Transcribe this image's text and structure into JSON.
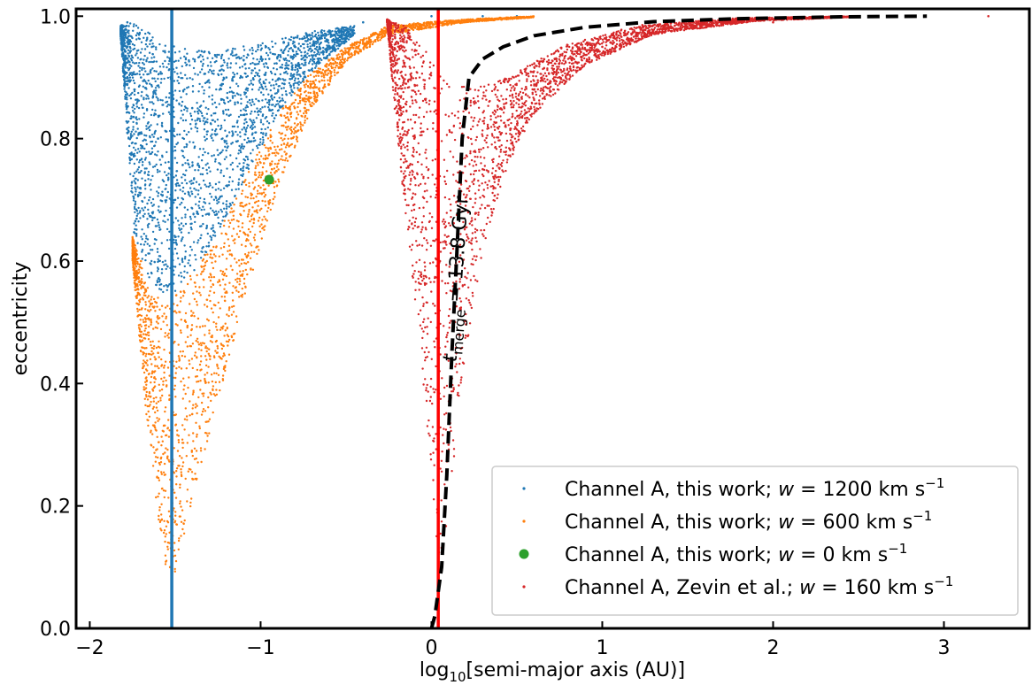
{
  "chart_data": {
    "type": "scatter",
    "xlabel_prefix": "log",
    "xlabel_sub": "10",
    "xlabel_main": "[semi-major axis (AU)]",
    "ylabel": "eccentricity",
    "xlim": [
      -2.08,
      3.5
    ],
    "ylim": [
      0.0,
      1.012
    ],
    "xticks": [
      -2,
      -1,
      0,
      1,
      2,
      3
    ],
    "yticks": [
      0.0,
      0.2,
      0.4,
      0.6,
      0.8,
      1.0
    ],
    "xtick_labels": [
      "−2",
      "−1",
      "0",
      "1",
      "2",
      "3"
    ],
    "ytick_labels": [
      "0.0",
      "0.2",
      "0.4",
      "0.6",
      "0.8",
      "1.0"
    ],
    "legend_position": "lower-right",
    "series": [
      {
        "name": "Channel A, this work; w = 1200 km s⁻¹",
        "legend_parts": [
          "Channel A, this work; ",
          "w",
          " = 1200 km s",
          "−1"
        ],
        "color": "#1f77b4",
        "marker": "dot",
        "region": {
          "upper": [
            [
              -1.82,
              0.985
            ],
            [
              -1.75,
              0.99
            ],
            [
              -1.6,
              0.965
            ],
            [
              -1.5,
              0.95
            ],
            [
              -1.3,
              0.942
            ],
            [
              -1.0,
              0.955
            ],
            [
              -0.7,
              0.975
            ],
            [
              -0.45,
              0.985
            ]
          ],
          "lower": [
            [
              -1.82,
              0.97
            ],
            [
              -1.74,
              0.64
            ],
            [
              -1.65,
              0.57
            ],
            [
              -1.55,
              0.54
            ],
            [
              -1.45,
              0.56
            ],
            [
              -1.3,
              0.62
            ],
            [
              -1.1,
              0.73
            ],
            [
              -0.9,
              0.84
            ],
            [
              -0.7,
              0.91
            ],
            [
              -0.45,
              0.97
            ]
          ]
        },
        "points": [
          [
            -1.78,
            0.99
          ],
          [
            -1.7,
            0.9
          ],
          [
            -1.6,
            0.8
          ],
          [
            -1.5,
            0.7
          ],
          [
            -1.4,
            0.85
          ],
          [
            -1.2,
            0.9
          ],
          [
            -1.0,
            0.93
          ],
          [
            -0.8,
            0.95
          ],
          [
            -0.6,
            0.975
          ],
          [
            -0.4,
            0.99
          ],
          [
            0.0,
            1.0
          ],
          [
            0.3,
            1.0
          ],
          [
            0.5,
            1.0
          ]
        ]
      },
      {
        "name": "Channel A, this work; w = 600 km s⁻¹",
        "legend_parts": [
          "Channel A, this work; ",
          "w",
          " = 600 km s",
          "−1"
        ],
        "color": "#ff7f0e",
        "marker": "dot",
        "region": {
          "upper": [
            [
              -1.75,
              0.64
            ],
            [
              -1.65,
              0.55
            ],
            [
              -1.55,
              0.53
            ],
            [
              -1.45,
              0.56
            ],
            [
              -1.3,
              0.62
            ],
            [
              -1.1,
              0.73
            ],
            [
              -0.9,
              0.84
            ],
            [
              -0.7,
              0.91
            ],
            [
              -0.5,
              0.95
            ],
            [
              -0.25,
              0.985
            ],
            [
              0.2,
              0.995
            ],
            [
              0.6,
              1.0
            ]
          ],
          "lower": [
            [
              -1.75,
              0.6
            ],
            [
              -1.67,
              0.35
            ],
            [
              -1.6,
              0.18
            ],
            [
              -1.53,
              0.05
            ],
            [
              -1.45,
              0.15
            ],
            [
              -1.3,
              0.32
            ],
            [
              -1.1,
              0.53
            ],
            [
              -0.9,
              0.72
            ],
            [
              -0.7,
              0.85
            ],
            [
              -0.5,
              0.925
            ],
            [
              -0.25,
              0.97
            ],
            [
              0.2,
              0.99
            ],
            [
              0.6,
              0.998
            ]
          ]
        },
        "points": [
          [
            -1.7,
            0.6
          ],
          [
            -1.6,
            0.45
          ],
          [
            -1.53,
            0.1
          ],
          [
            -1.4,
            0.35
          ],
          [
            -1.2,
            0.55
          ],
          [
            -1.0,
            0.72
          ],
          [
            -0.8,
            0.85
          ],
          [
            -0.6,
            0.92
          ],
          [
            -0.4,
            0.96
          ],
          [
            -0.2,
            0.98
          ]
        ]
      },
      {
        "name": "Channel A, this work; w = 0 km s⁻¹",
        "legend_parts": [
          "Channel A, this work; ",
          "w",
          " = 0 km s",
          "−1"
        ],
        "color": "#2ca02c",
        "marker": "big-dot",
        "points": [
          [
            -0.95,
            0.733
          ]
        ]
      },
      {
        "name": "Channel A, Zevin et al.; w = 160 km s⁻¹",
        "legend_parts": [
          "Channel A, Zevin et al.; ",
          "w",
          " = 160 km s",
          "−1"
        ],
        "color": "#d62728",
        "marker": "dot",
        "region": {
          "upper": [
            [
              -0.26,
              0.995
            ],
            [
              -0.15,
              0.985
            ],
            [
              -0.05,
              0.95
            ],
            [
              0.05,
              0.91
            ],
            [
              0.15,
              0.885
            ],
            [
              0.3,
              0.885
            ],
            [
              0.5,
              0.91
            ],
            [
              0.8,
              0.955
            ],
            [
              1.2,
              0.985
            ],
            [
              1.8,
              0.997
            ],
            [
              2.5,
              1.0
            ]
          ],
          "lower": [
            [
              -0.26,
              0.99
            ],
            [
              -0.2,
              0.8
            ],
            [
              -0.12,
              0.6
            ],
            [
              -0.05,
              0.4
            ],
            [
              0.0,
              0.25
            ],
            [
              0.05,
              0.08
            ],
            [
              0.1,
              0.2
            ],
            [
              0.2,
              0.45
            ],
            [
              0.3,
              0.62
            ],
            [
              0.45,
              0.76
            ],
            [
              0.6,
              0.84
            ],
            [
              0.9,
              0.92
            ],
            [
              1.3,
              0.97
            ],
            [
              1.9,
              0.992
            ],
            [
              2.5,
              0.999
            ]
          ]
        },
        "points": [
          [
            -0.25,
            0.99
          ],
          [
            -0.1,
            0.8
          ],
          [
            0.05,
            0.6
          ],
          [
            0.1,
            0.3
          ],
          [
            0.3,
            0.75
          ],
          [
            0.6,
            0.88
          ],
          [
            1.0,
            0.95
          ],
          [
            1.5,
            0.98
          ],
          [
            2.0,
            0.99
          ],
          [
            3.26,
            1.0
          ]
        ]
      }
    ],
    "vertical_lines": [
      {
        "x": -1.52,
        "color": "#1f77b4"
      },
      {
        "x": 0.04,
        "color": "#ff0000"
      }
    ],
    "merge_curve": {
      "label_math": "t",
      "label_sub": "merge",
      "label_rest": " = 13.8 Gyr",
      "color": "#000000",
      "style": "dashed",
      "points": [
        [
          0.0,
          0.0
        ],
        [
          0.02,
          0.02
        ],
        [
          0.06,
          0.1
        ],
        [
          0.09,
          0.25
        ],
        [
          0.12,
          0.45
        ],
        [
          0.15,
          0.62
        ],
        [
          0.18,
          0.8
        ],
        [
          0.22,
          0.9
        ],
        [
          0.3,
          0.93
        ],
        [
          0.42,
          0.95
        ],
        [
          0.6,
          0.968
        ],
        [
          0.9,
          0.982
        ],
        [
          1.3,
          0.991
        ],
        [
          1.8,
          0.996
        ],
        [
          2.4,
          0.999
        ],
        [
          2.9,
          1.0
        ]
      ]
    }
  }
}
